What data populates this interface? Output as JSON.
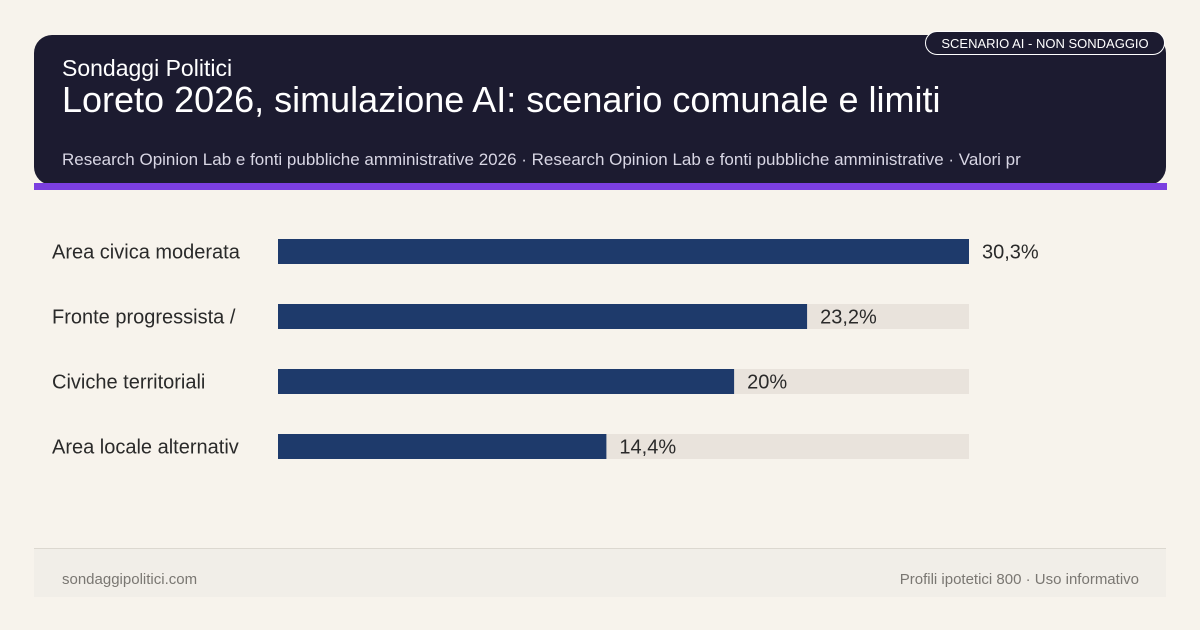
{
  "header": {
    "brand": "Sondaggi Politici",
    "title": "Loreto 2026, simulazione AI: scenario comunale e limiti",
    "source": "Research Opinion Lab e fonti pubbliche amministrative 2026 · Research Opinion Lab e fonti pubbliche amministrative · Valori pr",
    "badge": "SCENARIO AI - NON SONDAGGIO"
  },
  "footer": {
    "site": "sondaggipolitici.com",
    "note": "Profili ipotetici 800 · Uso informativo"
  },
  "colors": {
    "header_bg": "#1c1b30",
    "accent": "#7b3fe0",
    "bar": "#1e3a6b",
    "track": "#e9e3dc",
    "background": "#f7f3ec"
  },
  "chart_data": {
    "type": "bar",
    "orientation": "horizontal",
    "categories": [
      "Area civica moderata",
      "Fronte progressista /",
      "Civiche territoriali",
      "Area locale alternativ"
    ],
    "values": [
      30.3,
      23.2,
      20,
      14.4
    ],
    "value_labels": [
      "30,3%",
      "23,2%",
      "20%",
      "14,4%"
    ],
    "xlim": [
      0,
      30.3
    ],
    "grid": false
  }
}
